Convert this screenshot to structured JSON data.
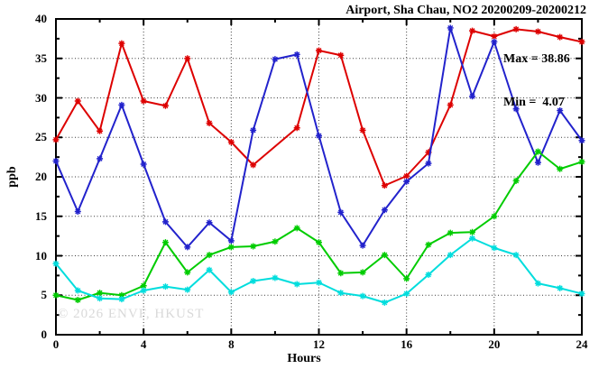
{
  "title": "Airport, Sha Chau, NO2 20200209-20200212",
  "watermark": "© 2026 ENVF, HKUST",
  "annotations": {
    "max_label": "Max = 38.86",
    "min_label": "Min =  4.07"
  },
  "chart_data": {
    "type": "line",
    "title": "Airport, Sha Chau, NO2 20200209-20200212",
    "xlabel": "Hours",
    "ylabel": "ppb",
    "xlim": [
      0,
      24
    ],
    "ylim": [
      0,
      40
    ],
    "x_major_ticks": [
      0,
      4,
      8,
      12,
      16,
      20,
      24
    ],
    "y_major_ticks": [
      0,
      5,
      10,
      15,
      20,
      25,
      30,
      35,
      40
    ],
    "x_minor_step": 2,
    "y_minor_step": 2.5,
    "grid": true,
    "legend": "none",
    "stats": {
      "max": 38.86,
      "min": 4.07
    },
    "x": [
      0,
      1,
      2,
      3,
      4,
      5,
      6,
      7,
      8,
      9,
      10,
      11,
      12,
      13,
      14,
      15,
      16,
      17,
      18,
      19,
      20,
      21,
      22,
      23,
      24
    ],
    "series": [
      {
        "name": "series-red",
        "color": "#dd0000",
        "values": [
          24.7,
          29.6,
          25.8,
          36.9,
          29.6,
          29.0,
          35.0,
          26.8,
          24.4,
          21.5,
          null,
          26.2,
          36.0,
          35.4,
          25.9,
          18.9,
          20.1,
          23.1,
          29.1,
          38.5,
          37.8,
          38.7,
          38.4,
          37.7,
          37.1
        ]
      },
      {
        "name": "series-blue",
        "color": "#2222cc",
        "values": [
          22.0,
          15.6,
          22.3,
          29.1,
          21.6,
          14.3,
          11.1,
          14.2,
          11.9,
          25.9,
          34.9,
          35.5,
          25.2,
          15.5,
          11.3,
          15.8,
          19.4,
          21.7,
          38.86,
          30.2,
          37.1,
          28.6,
          21.8,
          28.4,
          24.6
        ]
      },
      {
        "name": "series-green",
        "color": "#00cc00",
        "values": [
          5.0,
          4.4,
          5.3,
          5.0,
          6.2,
          11.7,
          7.9,
          10.1,
          11.1,
          11.2,
          11.8,
          13.5,
          11.7,
          7.8,
          7.9,
          10.1,
          7.1,
          11.4,
          12.9,
          13.0,
          15.0,
          19.5,
          23.2,
          21.0,
          21.9
        ]
      },
      {
        "name": "series-cyan",
        "color": "#00dddd",
        "values": [
          9.0,
          5.6,
          4.6,
          4.5,
          5.6,
          6.1,
          5.7,
          8.2,
          5.4,
          6.8,
          7.2,
          6.4,
          6.6,
          5.3,
          4.9,
          4.07,
          5.2,
          7.6,
          10.1,
          12.2,
          11.0,
          10.1,
          6.5,
          5.9,
          5.2
        ]
      }
    ]
  }
}
